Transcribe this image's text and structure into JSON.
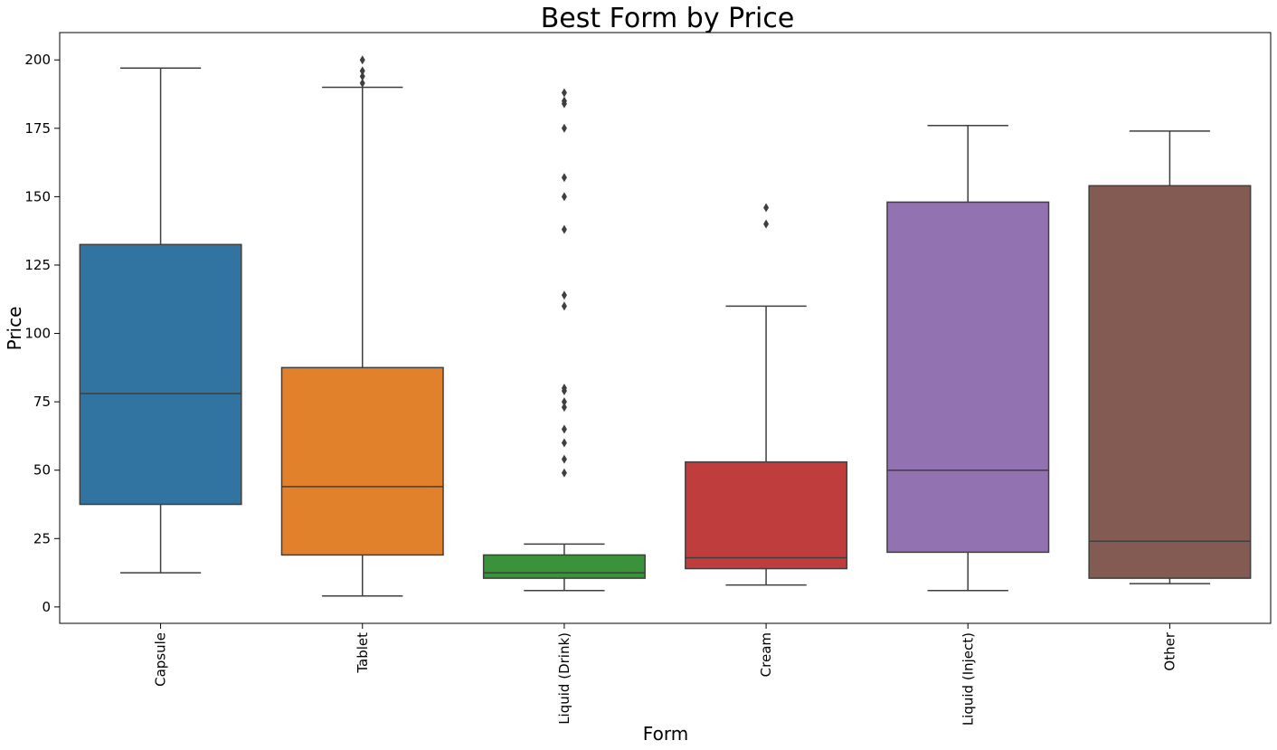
{
  "chart_data": {
    "type": "box",
    "title": "Best Form by Price",
    "xlabel": "Form",
    "ylabel": "Price",
    "ylim": [
      -6,
      210
    ],
    "yticks": [
      0,
      25,
      50,
      75,
      100,
      125,
      150,
      175,
      200
    ],
    "grid": false,
    "categories": [
      "Capsule",
      "Tablet",
      "Liquid (Drink)",
      "Cream",
      "Liquid (Inject)",
      "Other"
    ],
    "colors": [
      "#3274a1",
      "#e1812c",
      "#3a923a",
      "#c03d3e",
      "#9372b2",
      "#845b53"
    ],
    "line_color": "#3f3f3f",
    "boxes": [
      {
        "name": "Capsule",
        "whisker_low": 12.5,
        "q1": 37.5,
        "median": 78,
        "q3": 132.5,
        "whisker_high": 197,
        "outliers": []
      },
      {
        "name": "Tablet",
        "whisker_low": 4,
        "q1": 19,
        "median": 44,
        "q3": 87.5,
        "whisker_high": 190,
        "outliers": [
          191.5,
          194,
          196,
          200
        ]
      },
      {
        "name": "Liquid (Drink)",
        "whisker_low": 6,
        "q1": 10.5,
        "median": 12.5,
        "q3": 19,
        "whisker_high": 23,
        "outliers": [
          49,
          54,
          60,
          65,
          73,
          75,
          79,
          80,
          110,
          114,
          138,
          150,
          157,
          175,
          184,
          185,
          188
        ]
      },
      {
        "name": "Cream",
        "whisker_low": 8,
        "q1": 14,
        "median": 18,
        "q3": 53,
        "whisker_high": 110,
        "outliers": [
          140,
          146
        ]
      },
      {
        "name": "Liquid (Inject)",
        "whisker_low": 6,
        "q1": 20,
        "median": 50,
        "q3": 148,
        "whisker_high": 176,
        "outliers": []
      },
      {
        "name": "Other",
        "whisker_low": 8.5,
        "q1": 10.5,
        "median": 24,
        "q3": 154,
        "whisker_high": 174,
        "outliers": []
      }
    ]
  }
}
